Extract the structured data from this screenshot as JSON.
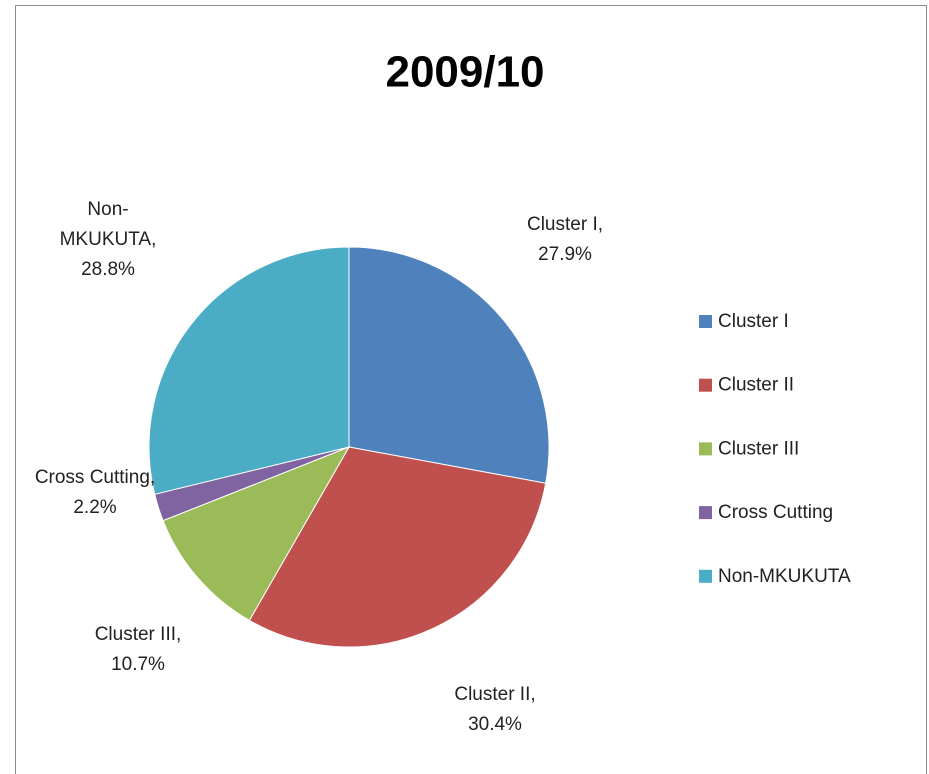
{
  "chart_data": {
    "type": "pie",
    "title": "2009/10",
    "categories": [
      "Cluster I",
      "Cluster II",
      "Cluster III",
      "Cross Cutting",
      "Non-MKUKUTA"
    ],
    "values": [
      27.9,
      30.4,
      10.7,
      2.2,
      28.8
    ],
    "value_labels": [
      "Cluster I, 27.9%",
      "Cluster II, 30.4%",
      "Cluster III, 10.7%",
      "Cross Cutting, 2.2%",
      "Non-MKUKUTA, 28.8%"
    ],
    "colors": [
      "#4f81bd",
      "#c0504d",
      "#9bbb59",
      "#8064a2",
      "#4bacc6"
    ],
    "legend": "right"
  }
}
